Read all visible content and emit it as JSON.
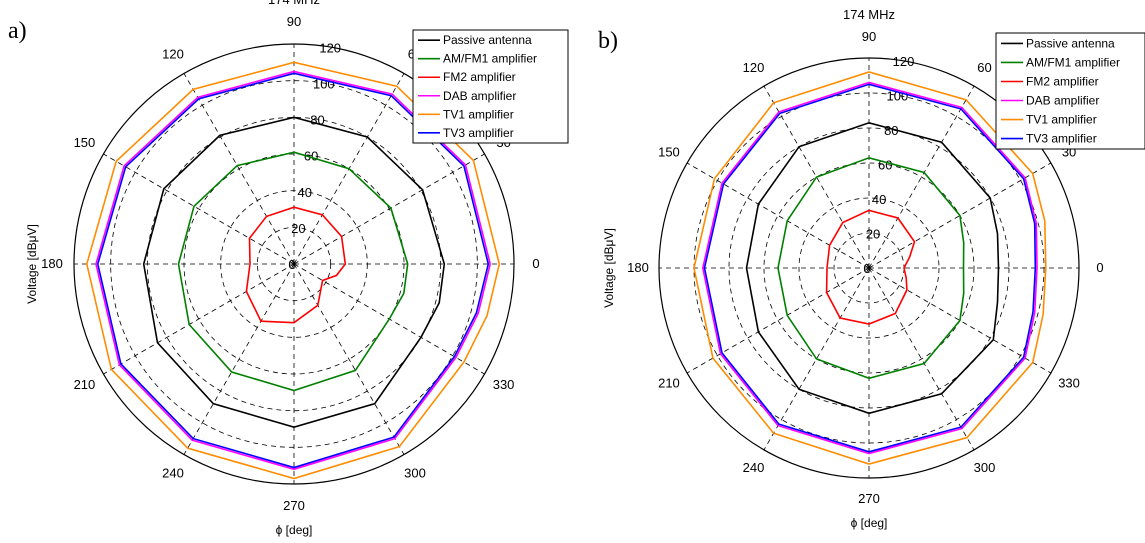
{
  "chart_data": [
    {
      "type": "polar-line",
      "panel_label": "a)",
      "title": "174 MHz",
      "xlabel": "ϕ [deg]",
      "ylabel": "Voltage [dBμV]",
      "angle_ticks": [
        "0",
        "30",
        "60",
        "90",
        "120",
        "150",
        "180",
        "210",
        "240",
        "270",
        "300",
        "330"
      ],
      "radial_ticks": [
        "0",
        "20",
        "40",
        "60",
        "80",
        "100",
        "120"
      ],
      "rlim": [
        0,
        120
      ],
      "grid": true,
      "legend_position": "top-right",
      "angles_deg": [
        0,
        30,
        60,
        90,
        120,
        150,
        180,
        210,
        240,
        270,
        300,
        330,
        345
      ],
      "series": [
        {
          "name": "Passive antenna",
          "color": "#000000",
          "values": [
            82,
            81,
            80,
            80,
            81,
            82,
            82,
            86,
            88,
            89,
            88,
            80,
            82
          ]
        },
        {
          "name": "AM/FM1 amplifier",
          "color": "#008000",
          "values": [
            62,
            61,
            60,
            61,
            62,
            63,
            63,
            66,
            68,
            69,
            67,
            60,
            62
          ]
        },
        {
          "name": "FM2 amplifier",
          "color": "#ff0000",
          "values": [
            28,
            30,
            31,
            31,
            30,
            28,
            24,
            30,
            36,
            32,
            26,
            18,
            24
          ]
        },
        {
          "name": "DAB amplifier",
          "color": "#ff00ff",
          "values": [
            107,
            108,
            107,
            105,
            105,
            107,
            108,
            110,
            111,
            112,
            110,
            102,
            104
          ]
        },
        {
          "name": "TV1 amplifier",
          "color": "#ff8c00",
          "values": [
            112,
            113,
            112,
            110,
            110,
            112,
            113,
            115,
            116,
            117,
            115,
            107,
            109
          ]
        },
        {
          "name": "TV3 amplifier",
          "color": "#0000ff",
          "values": [
            106,
            107,
            106,
            104,
            104,
            106,
            107,
            109,
            110,
            111,
            109,
            101,
            103
          ]
        }
      ]
    },
    {
      "type": "polar-line",
      "panel_label": "b)",
      "title": "174 MHz",
      "xlabel": "ϕ [deg]",
      "ylabel": "Voltage [dBμV]",
      "angle_ticks": [
        "0",
        "30",
        "60",
        "90",
        "120",
        "150",
        "180",
        "210",
        "240",
        "270",
        "300",
        "330"
      ],
      "radial_ticks": [
        "0",
        "20",
        "40",
        "60",
        "80",
        "100",
        "120"
      ],
      "rlim": [
        0,
        120
      ],
      "grid": true,
      "legend_position": "top-right",
      "angles_deg": [
        0,
        15,
        30,
        60,
        90,
        120,
        150,
        180,
        210,
        240,
        270,
        300,
        330,
        345
      ],
      "series": [
        {
          "name": "Passive antenna",
          "color": "#000000",
          "values": [
            74,
            76,
            80,
            83,
            83,
            80,
            73,
            70,
            73,
            80,
            83,
            83,
            82,
            76
          ]
        },
        {
          "name": "AM/FM1 amplifier",
          "color": "#008000",
          "values": [
            54,
            56,
            60,
            63,
            63,
            60,
            54,
            52,
            54,
            60,
            63,
            63,
            60,
            56
          ]
        },
        {
          "name": "FM2 amplifier",
          "color": "#ff0000",
          "values": [
            20,
            24,
            30,
            33,
            33,
            30,
            26,
            24,
            28,
            33,
            32,
            30,
            25,
            22
          ]
        },
        {
          "name": "DAB amplifier",
          "color": "#ff00ff",
          "values": [
            96,
            99,
            103,
            106,
            106,
            103,
            97,
            95,
            98,
            104,
            106,
            106,
            103,
            98
          ]
        },
        {
          "name": "TV1 amplifier",
          "color": "#ff8c00",
          "values": [
            101,
            104,
            108,
            111,
            112,
            109,
            102,
            100,
            103,
            109,
            112,
            112,
            108,
            103
          ]
        },
        {
          "name": "TV3 amplifier",
          "color": "#0000ff",
          "values": [
            95,
            98,
            102,
            105,
            105,
            102,
            96,
            94,
            97,
            103,
            105,
            105,
            102,
            97
          ]
        }
      ]
    }
  ]
}
